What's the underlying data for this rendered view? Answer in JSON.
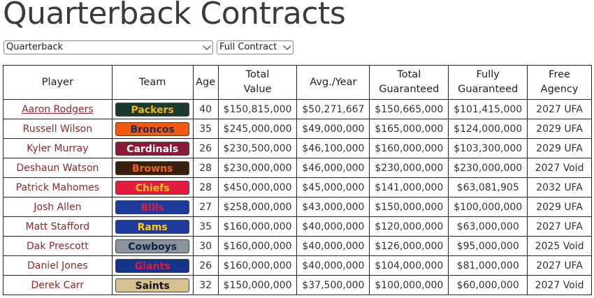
{
  "page": {
    "title": "Quarterback Contracts"
  },
  "filters": {
    "position": {
      "selected": "Quarterback",
      "icon": "chevron-down-icon"
    },
    "contract": {
      "selected": "Full Contract",
      "icon": "chevron-down-icon"
    }
  },
  "table": {
    "headers": {
      "player": "Player",
      "team": "Team",
      "age": "Age",
      "total_value": [
        "Total",
        "Value"
      ],
      "avg_year": "Avg./Year",
      "total_guaranteed": [
        "Total",
        "Guaranteed"
      ],
      "fully_guaranteed": [
        "Fully",
        "Guaranteed"
      ],
      "free_agency": [
        "Free",
        "Agency"
      ]
    },
    "rows": [
      {
        "player": "Aaron Rodgers",
        "linked": true,
        "team": "Packers",
        "team_bg": "#1a3a30",
        "team_fg": "#f5b51c",
        "age": "40",
        "total_value": "$150,815,000",
        "avg_year": "$50,271,667",
        "total_guaranteed": "$150,665,000",
        "fully_guaranteed": "$101,415,000",
        "free_agency": "2027 UFA"
      },
      {
        "player": "Russell Wilson",
        "linked": false,
        "team": "Broncos",
        "team_bg": "#f5590f",
        "team_fg": "#1c2a5a",
        "age": "35",
        "total_value": "$245,000,000",
        "avg_year": "$49,000,000",
        "total_guaranteed": "$165,000,000",
        "fully_guaranteed": "$124,000,000",
        "free_agency": "2029 UFA"
      },
      {
        "player": "Kyler Murray",
        "linked": false,
        "team": "Cardinals",
        "team_bg": "#8a1a36",
        "team_fg": "#ffffff",
        "age": "26",
        "total_value": "$230,500,000",
        "avg_year": "$46,100,000",
        "total_guaranteed": "$160,000,000",
        "fully_guaranteed": "$103,300,000",
        "free_agency": "2029 UFA"
      },
      {
        "player": "Deshaun Watson",
        "linked": false,
        "team": "Browns",
        "team_bg": "#3a1f0c",
        "team_fg": "#f26522",
        "age": "28",
        "total_value": "$230,000,000",
        "avg_year": "$46,000,000",
        "total_guaranteed": "$230,000,000",
        "fully_guaranteed": "$230,000,000",
        "free_agency": "2027 Void"
      },
      {
        "player": "Patrick Mahomes",
        "linked": false,
        "team": "Chiefs",
        "team_bg": "#e21c3c",
        "team_fg": "#ffc425",
        "age": "28",
        "total_value": "$450,000,000",
        "avg_year": "$45,000,000",
        "total_guaranteed": "$141,000,000",
        "fully_guaranteed": "$63,081,905",
        "free_agency": "2032 UFA"
      },
      {
        "player": "Josh Allen",
        "linked": false,
        "team": "Bills",
        "team_bg": "#1c3a9a",
        "team_fg": "#e21c3c",
        "age": "27",
        "total_value": "$258,000,000",
        "avg_year": "$43,000,000",
        "total_guaranteed": "$150,000,000",
        "fully_guaranteed": "$100,000,000",
        "free_agency": "2029 UFA"
      },
      {
        "player": "Matt Stafford",
        "linked": false,
        "team": "Rams",
        "team_bg": "#1c3aa0",
        "team_fg": "#ffd100",
        "age": "35",
        "total_value": "$160,000,000",
        "avg_year": "$40,000,000",
        "total_guaranteed": "$120,000,000",
        "fully_guaranteed": "$63,000,000",
        "free_agency": "2027 UFA"
      },
      {
        "player": "Dak Prescott",
        "linked": false,
        "team": "Cowboys",
        "team_bg": "#8a939c",
        "team_fg": "#0c2147",
        "age": "30",
        "total_value": "$160,000,000",
        "avg_year": "$40,000,000",
        "total_guaranteed": "$126,000,000",
        "fully_guaranteed": "$95,000,000",
        "free_agency": "2025 Void"
      },
      {
        "player": "Daniel Jones",
        "linked": false,
        "team": "Giants",
        "team_bg": "#14348a",
        "team_fg": "#e21c3c",
        "age": "26",
        "total_value": "$160,000,000",
        "avg_year": "$40,000,000",
        "total_guaranteed": "$104,000,000",
        "fully_guaranteed": "$81,000,000",
        "free_agency": "2027 UFA"
      },
      {
        "player": "Derek Carr",
        "linked": false,
        "team": "Saints",
        "team_bg": "#d6c190",
        "team_fg": "#111111",
        "age": "32",
        "total_value": "$150,000,000",
        "avg_year": "$37,500,000",
        "total_guaranteed": "$100,000,000",
        "fully_guaranteed": "$60,000,000",
        "free_agency": "2027 Void"
      }
    ]
  }
}
